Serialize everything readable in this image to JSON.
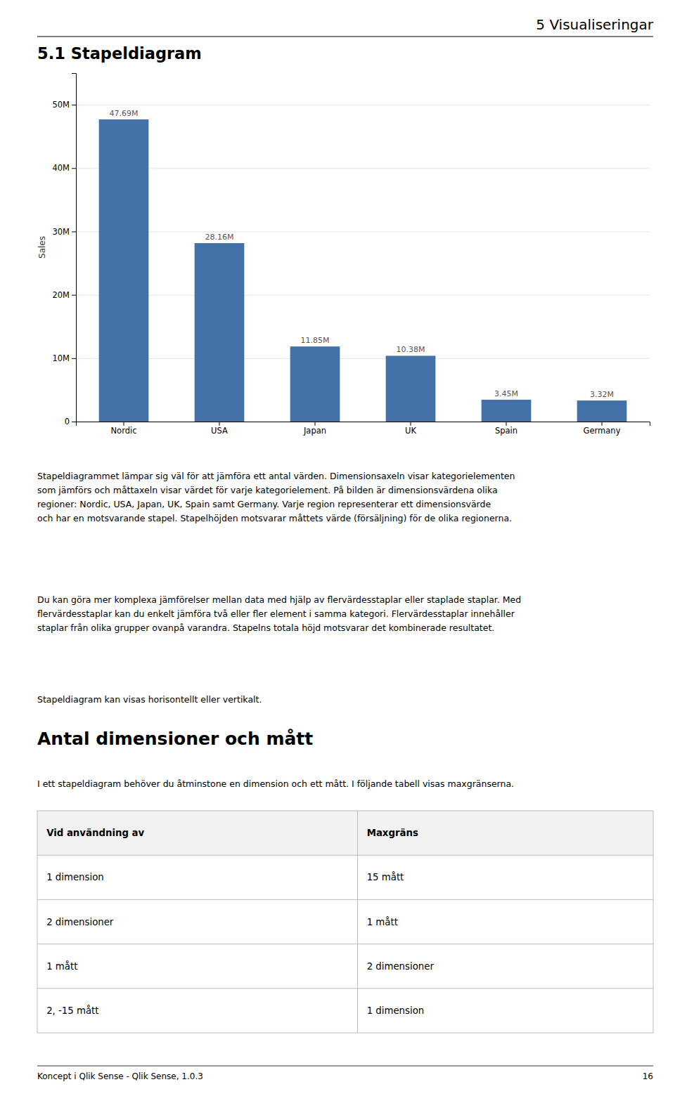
{
  "page_title": "5  Visualiseringar",
  "section_title": "5.1    Stapeldiagram",
  "chart_data": {
    "type": "bar",
    "categories": [
      "Nordic",
      "USA",
      "Japan",
      "UK",
      "Spain",
      "Germany"
    ],
    "values": [
      47.69,
      28.16,
      11.85,
      10.38,
      3.45,
      3.32
    ],
    "value_labels": [
      "47.69M",
      "28.16M",
      "11.85M",
      "10.38M",
      "3.45M",
      "3.32M"
    ],
    "color": "#4472a8",
    "ylabel": "Sales",
    "ylim": [
      0,
      55
    ],
    "yticks": [
      0,
      {
        "value": 10,
        "label": "10M"
      },
      {
        "value": 20,
        "label": "20M"
      },
      {
        "value": 30,
        "label": "30M"
      },
      {
        "value": 40,
        "label": "40M"
      },
      {
        "value": 50,
        "label": "50M"
      }
    ],
    "grid": true,
    "data_labels": true
  },
  "paragraphs": [
    "Stapeldiagrammet lämpar sig väl för att jämföra ett antal värden. Dimensionsaxeln visar kategorielementen\nsom jämförs och måttaxeln visar värdet för varje kategorielement. På bilden är dimensionsvärdena olika\nregioner: Nordic, USA, Japan, UK, Spain samt Germany. Varje region representerar ett dimensionsvärde\noch har en motsvarande stapel. Stapelhöjden motsvarar måttets värde (försäljning) för de olika regionerna.",
    "Du kan göra mer komplexa jämförelser mellan data med hjälp av flervärdesstaplar eller staplade staplar. Med\nflervärdesstaplar kan du enkelt jämföra två eller fler element i samma kategori. Flervärdesstaplar innehåller\nstaplar från olika grupper ovanpå varandra. Stapelns totala höjd motsvarar det kombinerade resultatet.",
    "Stapeldiagram kan visas horisontellt eller vertikalt."
  ],
  "section2_title": "Antal dimensioner och mått",
  "section2_intro": "I ett stapeldiagram behöver du åtminstone en dimension och ett mått. I följande tabell visas maxgränserna.",
  "table": {
    "columns": [
      "Vid användning av",
      "Maxgräns"
    ],
    "rows": [
      [
        "1 dimension",
        "15 mått"
      ],
      [
        "2 dimensioner",
        "1 mått"
      ],
      [
        "1 mått",
        "2 dimensioner"
      ],
      [
        "2, -15 mått",
        "1 dimension"
      ]
    ]
  },
  "footer_left": "Koncept i Qlik Sense - Qlik Sense, 1.0.3",
  "footer_right": "16"
}
